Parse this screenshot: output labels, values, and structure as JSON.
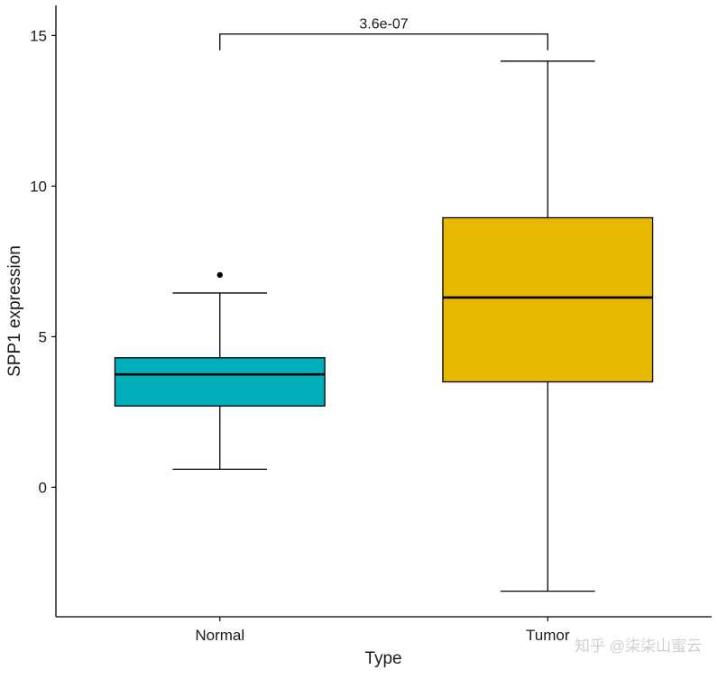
{
  "chart_data": {
    "type": "box",
    "title": "",
    "xlabel": "Type",
    "ylabel": "SPP1 expression",
    "ylim": [
      -4.3,
      16
    ],
    "yticks": [
      0,
      5,
      10,
      15
    ],
    "categories": [
      "Normal",
      "Tumor"
    ],
    "colors": [
      "#00AFBB",
      "#E7B800"
    ],
    "boxes": [
      {
        "name": "Normal",
        "whisker_low": 0.6,
        "q1": 2.7,
        "median": 3.75,
        "q3": 4.3,
        "whisker_high": 6.45,
        "outliers": [
          7.05
        ]
      },
      {
        "name": "Tumor",
        "whisker_low": -3.45,
        "q1": 3.5,
        "median": 6.3,
        "q3": 8.95,
        "whisker_high": 14.15,
        "outliers": []
      }
    ],
    "annotation": {
      "text": "3.6e-07",
      "between": [
        "Normal",
        "Tumor"
      ],
      "y": 15.05
    }
  },
  "watermark": {
    "text": "知乎 @柒柒山蜜云"
  }
}
